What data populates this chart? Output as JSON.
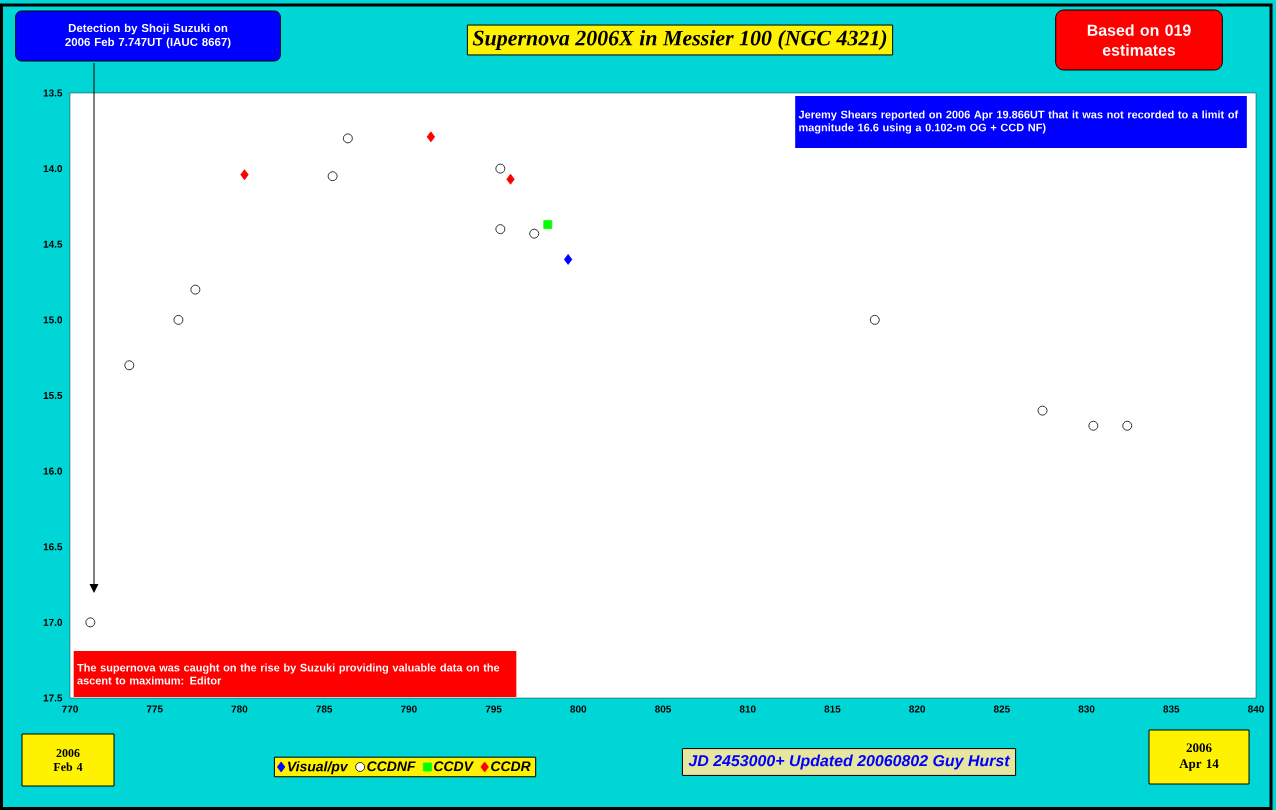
{
  "chart_data": {
    "type": "scatter",
    "title": "Supernova 2006X in Messier 100 (NGC 4321)",
    "xlabel": "JD 2453000+ Updated 20060802 Guy Hurst",
    "series": [
      {
        "name": "Visual/pv",
        "color": "#0000ff",
        "marker": "diamond",
        "x": [
          799.4
        ],
        "values": [
          14.6
        ]
      },
      {
        "name": "CCDNF",
        "color": "#ffffff",
        "marker": "circle",
        "x": [
          771.2,
          773.5,
          776.4,
          777.4,
          785.5,
          786.4,
          795.4,
          795.4,
          797.4,
          817.5,
          827.4,
          830.4,
          832.4
        ],
        "values": [
          17.0,
          15.3,
          15.0,
          14.8,
          14.05,
          13.8,
          14.0,
          14.4,
          14.43,
          15.0,
          15.6,
          15.7,
          15.7
        ]
      },
      {
        "name": "CCDV",
        "color": "#00ff00",
        "marker": "square",
        "x": [
          798.2
        ],
        "values": [
          14.37
        ]
      },
      {
        "name": "CCDR",
        "color": "#ff0000",
        "marker": "diamond",
        "x": [
          780.3,
          791.3,
          796.0
        ],
        "values": [
          14.04,
          13.79,
          14.07
        ]
      }
    ],
    "xlim": [
      770,
      840
    ],
    "xticks": [
      770,
      775,
      780,
      785,
      790,
      795,
      800,
      805,
      810,
      815,
      820,
      825,
      830,
      835,
      840
    ],
    "ylim": [
      17.5,
      13.5
    ],
    "yticks": [
      13.5,
      {
        "value": 14,
        "label": "14.0"
      },
      14.5,
      {
        "value": 15,
        "label": "15.0"
      },
      15.5,
      {
        "value": 16,
        "label": "16.0"
      },
      16.5,
      {
        "value": 17,
        "label": "17.0"
      },
      17.5
    ],
    "legend": "bottom",
    "grid": false,
    "annotations": [
      "Detection by  Shoji Suzuki on 2006 Feb 7.747UT (IAUC 8667)",
      "Based on 019 estimates",
      "Jeremy Shears reported on 2006 Apr 19.866UT that it was not recorded to a limit of magnitude 16.6 using a 0.102-m OG + CCD NF)",
      "The supernova was caught on the rise by Suzuki providing valuable data on the ascent to maximum: Editor",
      "2006 Feb 4",
      "2006 Apr 14"
    ]
  }
}
